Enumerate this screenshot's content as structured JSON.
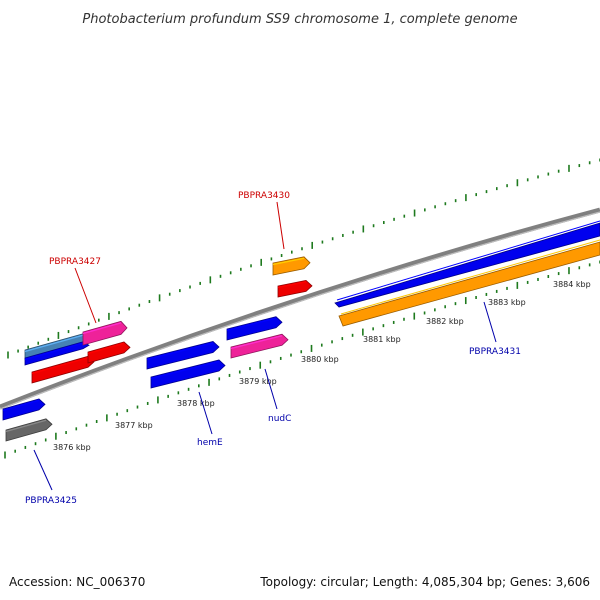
{
  "title": "Photobacterium profundum SS9 chromosome 1, complete genome",
  "footer": {
    "accession": "Accession: NC_006370",
    "summary": "Topology: circular; Length: 4,085,304 bp; Genes: 3,606"
  },
  "colors": {
    "backbone": "#808080",
    "tick": "#1e7a1e",
    "blue": "#0000ee",
    "red": "#ee0000",
    "pink": "#ee2299",
    "orange": "#ff9900",
    "gray": "#666666",
    "steel": "#4682b4",
    "label_red": "#cc0000",
    "label_blue": "#0000aa"
  },
  "scale_labels": [
    "3876 kbp",
    "3877 kbp",
    "3878 kbp",
    "3879 kbp",
    "3880 kbp",
    "3881 kbp",
    "3882 kbp",
    "3883 kbp",
    "3884 kbp"
  ],
  "gene_labels": [
    {
      "name": "PBPRA3427",
      "color": "label_red"
    },
    {
      "name": "PBPRA3430",
      "color": "label_red"
    },
    {
      "name": "PBPRA3425",
      "color": "label_blue"
    },
    {
      "name": "hemE",
      "color": "label_blue"
    },
    {
      "name": "nudC",
      "color": "label_blue"
    },
    {
      "name": "PBPRA3431",
      "color": "label_blue"
    }
  ]
}
